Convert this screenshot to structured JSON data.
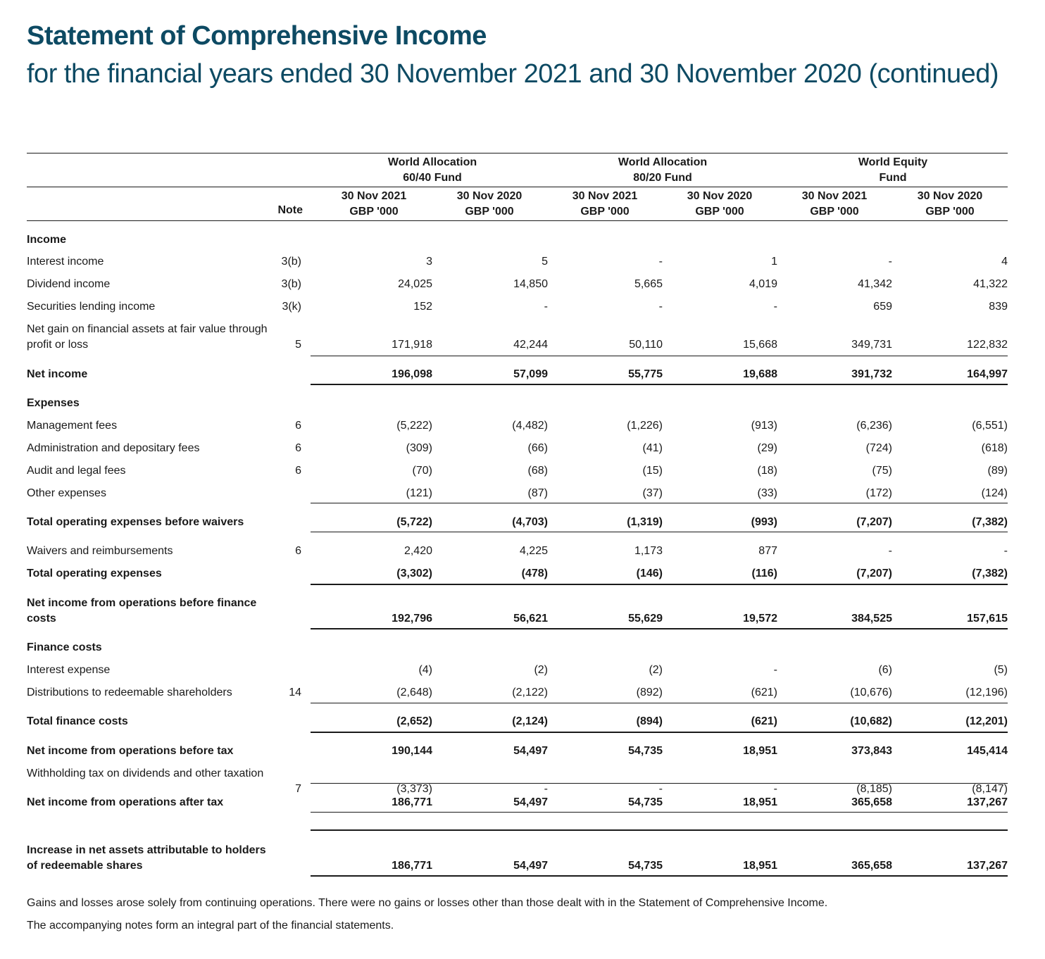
{
  "title": "Statement of Comprehensive Income",
  "subtitle": "for the financial years ended 30 November 2021 and 30 November 2020 (continued)",
  "header": {
    "note": "Note",
    "funds": [
      {
        "line1": "World Allocation",
        "line2": "60/40 Fund"
      },
      {
        "line1": "World Allocation",
        "line2": "80/20 Fund"
      },
      {
        "line1": "World Equity",
        "line2": "Fund"
      }
    ],
    "columns": [
      {
        "date": "30 Nov 2021",
        "unit": "GBP '000"
      },
      {
        "date": "30 Nov 2020",
        "unit": "GBP '000"
      },
      {
        "date": "30 Nov 2021",
        "unit": "GBP '000"
      },
      {
        "date": "30 Nov 2020",
        "unit": "GBP '000"
      },
      {
        "date": "30 Nov 2021",
        "unit": "GBP '000"
      },
      {
        "date": "30 Nov 2020",
        "unit": "GBP '000"
      }
    ]
  },
  "rows": [
    {
      "label": "Income",
      "note": "",
      "values": [
        "",
        "",
        "",
        "",
        "",
        ""
      ],
      "bold": true
    },
    {
      "label": "Interest income",
      "note": "3(b)",
      "values": [
        "3",
        "5",
        "-",
        "1",
        "-",
        "4"
      ],
      "bold": false
    },
    {
      "label": "Dividend income",
      "note": "3(b)",
      "values": [
        "24,025",
        "14,850",
        "5,665",
        "4,019",
        "41,342",
        "41,322"
      ],
      "bold": false
    },
    {
      "label": "Securities lending income",
      "note": "3(k)",
      "values": [
        "152",
        "-",
        "-",
        "-",
        "659",
        "839"
      ],
      "bold": false
    },
    {
      "label": "Net gain on financial assets at fair value through profit or loss",
      "note": "5",
      "values": [
        "171,918",
        "42,244",
        "50,110",
        "15,668",
        "349,731",
        "122,832"
      ],
      "bold": false
    },
    {
      "label": "Net income",
      "note": "",
      "values": [
        "196,098",
        "57,099",
        "55,775",
        "19,688",
        "391,732",
        "164,997"
      ],
      "bold": true
    },
    {
      "label": "Expenses",
      "note": "",
      "values": [
        "",
        "",
        "",
        "",
        "",
        ""
      ],
      "bold": true
    },
    {
      "label": "Management fees",
      "note": "6",
      "values": [
        "(5,222)",
        "(4,482)",
        "(1,226)",
        "(913)",
        "(6,236)",
        "(6,551)"
      ],
      "bold": false
    },
    {
      "label": "Administration and depositary fees",
      "note": "6",
      "values": [
        "(309)",
        "(66)",
        "(41)",
        "(29)",
        "(724)",
        "(618)"
      ],
      "bold": false
    },
    {
      "label": "Audit and legal fees",
      "note": "6",
      "values": [
        "(70)",
        "(68)",
        "(15)",
        "(18)",
        "(75)",
        "(89)"
      ],
      "bold": false
    },
    {
      "label": "Other expenses",
      "note": "",
      "values": [
        "(121)",
        "(87)",
        "(37)",
        "(33)",
        "(172)",
        "(124)"
      ],
      "bold": false
    },
    {
      "label": "Total operating expenses before waivers",
      "note": "",
      "values": [
        "(5,722)",
        "(4,703)",
        "(1,319)",
        "(993)",
        "(7,207)",
        "(7,382)"
      ],
      "bold": true
    },
    {
      "label": "Waivers and reimbursements",
      "note": "6",
      "values": [
        "2,420",
        "4,225",
        "1,173",
        "877",
        "-",
        "-"
      ],
      "bold": false
    },
    {
      "label": "Total operating expenses",
      "note": "",
      "values": [
        "(3,302)",
        "(478)",
        "(146)",
        "(116)",
        "(7,207)",
        "(7,382)"
      ],
      "bold": true
    },
    {
      "label": "Net income from operations before finance costs",
      "note": "",
      "values": [
        "192,796",
        "56,621",
        "55,629",
        "19,572",
        "384,525",
        "157,615"
      ],
      "bold": true
    },
    {
      "label": "Finance costs",
      "note": "",
      "values": [
        "",
        "",
        "",
        "",
        "",
        ""
      ],
      "bold": true
    },
    {
      "label": "Interest expense",
      "note": "",
      "values": [
        "(4)",
        "(2)",
        "(2)",
        "-",
        "(6)",
        "(5)"
      ],
      "bold": false
    },
    {
      "label": "Distributions to redeemable shareholders",
      "note": "14",
      "values": [
        "(2,648)",
        "(2,122)",
        "(892)",
        "(621)",
        "(10,676)",
        "(12,196)"
      ],
      "bold": false
    },
    {
      "label": "Total finance costs",
      "note": "",
      "values": [
        "(2,652)",
        "(2,124)",
        "(894)",
        "(621)",
        "(10,682)",
        "(12,201)"
      ],
      "bold": true
    },
    {
      "label": "Net income from operations before tax",
      "note": "",
      "values": [
        "190,144",
        "54,497",
        "54,735",
        "18,951",
        "373,843",
        "145,414"
      ],
      "bold": true
    },
    {
      "label": "Withholding tax on dividends and other taxation",
      "note": "7",
      "values": [
        "(3,373)",
        "-",
        "-",
        "-",
        "(8,185)",
        "(8,147)"
      ],
      "bold": false
    },
    {
      "label": "Net income from operations after tax",
      "note": "",
      "values": [
        "186,771",
        "54,497",
        "54,735",
        "18,951",
        "365,658",
        "137,267"
      ],
      "bold": true
    },
    {
      "label": "Increase in net assets attributable to holders of redeemable shares",
      "note": "",
      "values": [
        "186,771",
        "54,497",
        "54,735",
        "18,951",
        "365,658",
        "137,267"
      ],
      "bold": true
    }
  ],
  "footnotes": [
    "Gains and losses arose solely from continuing operations. There were no gains or losses other than those dealt with in the Statement of Comprehensive Income.",
    "The accompanying notes form an integral part of the financial statements."
  ]
}
